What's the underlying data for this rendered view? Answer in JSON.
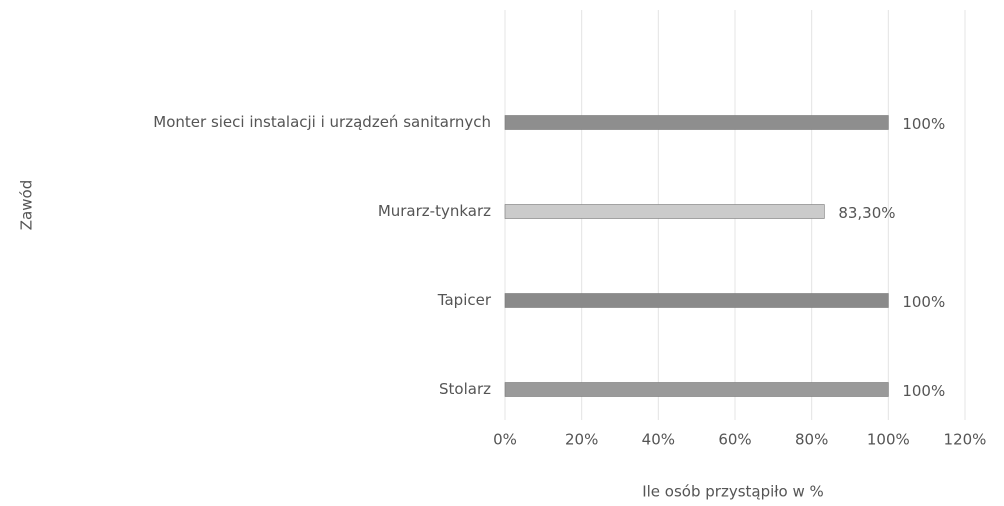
{
  "chart_data": {
    "type": "hbar",
    "x_label": "Ile osób przystąpiło w %",
    "y_label": "Zawód",
    "categories": [
      "Monter sieci instalacji i urządzeń sanitarnych",
      "Murarz-tynkarz",
      "Tapicer",
      "Stolarz"
    ],
    "values": [
      100,
      83.3,
      100,
      100
    ],
    "value_labels": [
      "100%",
      "83,30%",
      "100%",
      "100%"
    ],
    "colors": [
      "#8e8e8e",
      "#cbcbcb",
      "#8a8a8a",
      "#9a9a9a"
    ],
    "xlim": [
      0,
      120
    ],
    "xticks": [
      {
        "value": 0,
        "label": "0%"
      },
      {
        "value": 20,
        "label": "20%"
      },
      {
        "value": 40,
        "label": "40%"
      },
      {
        "value": 60,
        "label": "60%"
      },
      {
        "value": 80,
        "label": "80%"
      },
      {
        "value": 100,
        "label": "100%"
      },
      {
        "value": 120,
        "label": "120%"
      }
    ],
    "grid": true
  }
}
